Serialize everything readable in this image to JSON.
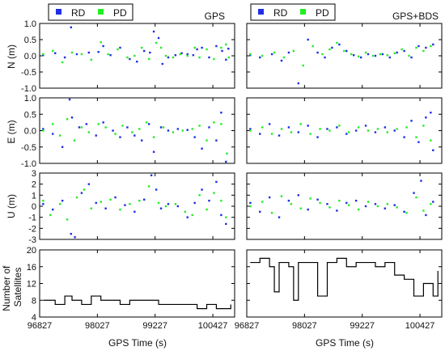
{
  "figure": {
    "xlabel": "GPS Time (s)",
    "xticks": [
      "96827",
      "98027",
      "99227",
      "100427"
    ],
    "columns": [
      "GPS",
      "GPS+BDS"
    ],
    "ylabels": [
      "N (m)",
      "E (m)",
      "U (m)",
      "Number of Satellites"
    ],
    "legend": [
      "RD",
      "PD"
    ]
  },
  "colors": {
    "RD": "#1f2ee6",
    "PD": "#22ee22",
    "line": "#000000",
    "frame": "#000000"
  },
  "chart_data": [
    {
      "type": "scatter",
      "panel": "N",
      "column": "GPS",
      "title": "GPS",
      "ylabel": "N (m)",
      "xlim": [
        96827,
        100880
      ],
      "ylim": [
        -1.0,
        1.0
      ],
      "yticks": [
        "1.0",
        "0.5",
        "0.0",
        "-0.5",
        "-1.0"
      ],
      "legend": "top-left",
      "series": [
        {
          "name": "RD",
          "x": [
            96900,
            97150,
            97350,
            97480,
            97600,
            97850,
            98050,
            98150,
            98300,
            98500,
            98700,
            98850,
            99000,
            99120,
            99200,
            99300,
            99380,
            99500,
            99650,
            99780,
            99900,
            100020,
            100100,
            100200,
            100350,
            100500,
            100620,
            100700,
            100750
          ],
          "y": [
            0.02,
            0.08,
            -0.05,
            0.88,
            0.05,
            0.1,
            0.12,
            0.3,
            0.02,
            0.25,
            -0.1,
            -0.18,
            0.15,
            0.1,
            0.75,
            0.55,
            -0.25,
            -0.05,
            0.02,
            0.08,
            0.05,
            0.02,
            0.2,
            0.25,
            -0.05,
            0.3,
            0.15,
            -0.12,
            0.22
          ]
        },
        {
          "name": "PD",
          "x": [
            96900,
            97100,
            97300,
            97500,
            97700,
            97900,
            98100,
            98250,
            98450,
            98650,
            98800,
            98950,
            99100,
            99250,
            99350,
            99450,
            99600,
            99750,
            99900,
            100050,
            100150,
            100300,
            100450,
            100600,
            100700,
            100760
          ],
          "y": [
            0.05,
            0.15,
            -0.2,
            0.1,
            0.05,
            -0.12,
            0.42,
            0.05,
            0.2,
            -0.05,
            0.0,
            0.25,
            -0.1,
            0.4,
            0.25,
            0.0,
            -0.05,
            0.05,
            0.0,
            0.25,
            -0.05,
            0.2,
            -0.1,
            0.25,
            0.35,
            -0.05
          ]
        }
      ]
    },
    {
      "type": "scatter",
      "panel": "N",
      "column": "GPS+BDS",
      "title": "GPS+BDS",
      "ylabel": "",
      "xlim": [
        96827,
        100880
      ],
      "ylim": [
        -1.0,
        1.0
      ],
      "yticks": [],
      "legend": "top-left",
      "series": [
        {
          "name": "RD",
          "x": [
            96900,
            97100,
            97350,
            97550,
            97700,
            97900,
            98100,
            98300,
            98450,
            98600,
            98750,
            98900,
            99050,
            99200,
            99350,
            99500,
            99650,
            99800,
            99950,
            100100,
            100250,
            100400,
            100550,
            100700
          ],
          "y": [
            0.02,
            -0.05,
            0.05,
            -0.15,
            0.1,
            -0.85,
            0.5,
            0.1,
            -0.05,
            0.25,
            0.35,
            0.15,
            0.02,
            -0.05,
            0.05,
            0.0,
            0.05,
            -0.05,
            0.1,
            0.15,
            -0.05,
            0.3,
            0.25,
            0.35
          ]
        },
        {
          "name": "PD",
          "x": [
            96900,
            97150,
            97400,
            97600,
            97800,
            98000,
            98200,
            98400,
            98550,
            98700,
            98850,
            99000,
            99150,
            99300,
            99450,
            99600,
            99750,
            99900,
            100050,
            100200,
            100350,
            100500,
            100650
          ],
          "y": [
            0.05,
            0.0,
            0.1,
            -0.05,
            0.15,
            -0.3,
            0.3,
            0.05,
            0.2,
            0.4,
            0.15,
            0.05,
            -0.02,
            0.1,
            0.0,
            0.05,
            0.02,
            0.08,
            0.2,
            0.0,
            0.25,
            0.15,
            0.3
          ]
        }
      ]
    },
    {
      "type": "scatter",
      "panel": "E",
      "column": "GPS",
      "title": "",
      "ylabel": "E (m)",
      "xlim": [
        96827,
        100880
      ],
      "ylim": [
        -1.0,
        1.0
      ],
      "yticks": [
        "1.0",
        "0.5",
        "0.0",
        "-0.5",
        "-1.0"
      ],
      "series": [
        {
          "name": "RD",
          "x": [
            96900,
            97100,
            97300,
            97450,
            97500,
            97650,
            97800,
            98000,
            98150,
            98350,
            98500,
            98650,
            98800,
            98950,
            99100,
            99200,
            99350,
            99500,
            99700,
            99900,
            100050,
            100200,
            100350,
            100500,
            100600,
            100700
          ],
          "y": [
            0.05,
            -0.1,
            -0.5,
            0.95,
            0.4,
            0.1,
            0.2,
            -0.15,
            0.25,
            0.0,
            -0.2,
            0.1,
            -0.15,
            -0.3,
            0.2,
            -0.65,
            0.1,
            0.0,
            0.05,
            0.02,
            -0.2,
            -0.55,
            0.1,
            -0.3,
            0.55,
            -0.95
          ]
        },
        {
          "name": "PD",
          "x": [
            96900,
            97100,
            97250,
            97400,
            97550,
            97700,
            97850,
            98050,
            98200,
            98400,
            98550,
            98750,
            98900,
            99050,
            99200,
            99400,
            99600,
            99800,
            100000,
            100150,
            100300,
            100450,
            100600,
            100720
          ],
          "y": [
            0.0,
            0.2,
            -0.15,
            0.35,
            -0.3,
            0.1,
            -0.05,
            0.2,
            0.1,
            -0.1,
            0.15,
            -0.05,
            0.05,
            0.25,
            -0.2,
            0.1,
            -0.05,
            0.0,
            0.05,
            0.15,
            -0.3,
            0.25,
            0.2,
            -0.7
          ]
        }
      ]
    },
    {
      "type": "scatter",
      "panel": "E",
      "column": "GPS+BDS",
      "title": "",
      "ylabel": "",
      "xlim": [
        96827,
        100880
      ],
      "ylim": [
        -1.0,
        1.0
      ],
      "yticks": [],
      "series": [
        {
          "name": "RD",
          "x": [
            96900,
            97100,
            97300,
            97500,
            97700,
            97900,
            98100,
            98300,
            98500,
            98700,
            98900,
            99100,
            99300,
            99500,
            99700,
            99900,
            100100,
            100250,
            100400,
            100550,
            100650,
            100700
          ],
          "y": [
            0.05,
            -0.1,
            0.2,
            -0.15,
            0.1,
            -0.05,
            0.15,
            -0.2,
            0.05,
            0.1,
            -0.1,
            0.0,
            0.15,
            -0.05,
            0.1,
            0.0,
            -0.2,
            0.3,
            -0.35,
            0.4,
            0.55,
            -0.6
          ]
        },
        {
          "name": "PD",
          "x": [
            96900,
            97150,
            97350,
            97550,
            97750,
            97950,
            98150,
            98350,
            98550,
            98750,
            98950,
            99150,
            99350,
            99550,
            99750,
            99950,
            100150,
            100350,
            100500,
            100650
          ],
          "y": [
            0.0,
            0.1,
            -0.1,
            0.05,
            -0.05,
            0.2,
            -0.1,
            0.05,
            0.0,
            0.15,
            -0.05,
            0.1,
            0.0,
            0.05,
            -0.05,
            0.05,
            0.1,
            -0.2,
            0.15,
            -0.3
          ]
        }
      ]
    },
    {
      "type": "scatter",
      "panel": "U",
      "column": "GPS",
      "title": "",
      "ylabel": "U (m)",
      "xlim": [
        96827,
        100880
      ],
      "ylim": [
        -3,
        3
      ],
      "yticks": [
        "3",
        "2",
        "1",
        "0",
        "-1",
        "-2",
        "-3"
      ],
      "series": [
        {
          "name": "RD",
          "x": [
            96900,
            97100,
            97300,
            97480,
            97560,
            97700,
            97850,
            98000,
            98200,
            98400,
            98600,
            98800,
            99000,
            99150,
            99250,
            99350,
            99500,
            99700,
            99900,
            100050,
            100200,
            100350,
            100500,
            100600,
            100700
          ],
          "y": [
            0.2,
            -0.3,
            0.5,
            -2.5,
            -2.8,
            1.2,
            2.0,
            0.3,
            -0.2,
            0.8,
            0.1,
            -0.5,
            0.6,
            2.8,
            1.5,
            -0.2,
            0.2,
            0.0,
            -1.0,
            0.3,
            1.5,
            0.5,
            2.2,
            -0.8,
            -1.6
          ]
        },
        {
          "name": "PD",
          "x": [
            96900,
            97050,
            97250,
            97400,
            97600,
            97750,
            97900,
            98100,
            98300,
            98500,
            98700,
            98900,
            99100,
            99300,
            99450,
            99650,
            99850,
            100000,
            100150,
            100300,
            100450,
            100600,
            100700
          ],
          "y": [
            0.5,
            -0.8,
            0.2,
            -1.2,
            0.8,
            1.5,
            -0.2,
            0.4,
            0.6,
            -0.3,
            0.2,
            0.5,
            1.8,
            0.3,
            0.0,
            0.2,
            -0.5,
            -0.8,
            1.0,
            -0.3,
            1.2,
            0.5,
            -1.0
          ]
        }
      ]
    },
    {
      "type": "scatter",
      "panel": "U",
      "column": "GPS+BDS",
      "title": "",
      "ylabel": "",
      "xlim": [
        96827,
        100880
      ],
      "ylim": [
        -3,
        3
      ],
      "yticks": [],
      "series": [
        {
          "name": "RD",
          "x": [
            96900,
            97100,
            97300,
            97500,
            97700,
            97900,
            98100,
            98300,
            98500,
            98700,
            98900,
            99100,
            99300,
            99500,
            99700,
            99900,
            100100,
            100300,
            100450,
            100550,
            100700
          ],
          "y": [
            0.3,
            -0.5,
            0.8,
            -1.0,
            0.5,
            1.0,
            -0.3,
            0.6,
            0.2,
            -0.4,
            0.3,
            0.5,
            0.0,
            0.2,
            -0.2,
            0.1,
            -0.5,
            1.2,
            2.3,
            -0.8,
            0.4
          ]
        },
        {
          "name": "PD",
          "x": [
            96900,
            97150,
            97350,
            97550,
            97750,
            97950,
            98150,
            98350,
            98550,
            98750,
            98950,
            99150,
            99350,
            99550,
            99750,
            99950,
            100150,
            100350,
            100500,
            100650
          ],
          "y": [
            0.0,
            0.4,
            -0.6,
            0.9,
            0.2,
            -0.2,
            0.7,
            0.3,
            -0.1,
            0.5,
            0.1,
            -0.3,
            0.4,
            0.0,
            0.2,
            -0.1,
            -0.6,
            0.8,
            -0.4,
            0.2
          ]
        }
      ]
    },
    {
      "type": "line",
      "panel": "Satellites",
      "column": "GPS",
      "title": "",
      "ylabel": "Number of Satellites",
      "xlim": [
        96827,
        100880
      ],
      "ylim": [
        4,
        20
      ],
      "yticks": [
        "20",
        "16",
        "12",
        "8",
        "4"
      ],
      "series": [
        {
          "name": "",
          "x": [
            96900,
            97150,
            97350,
            97500,
            97700,
            97900,
            98100,
            98300,
            98500,
            98700,
            98900,
            99100,
            99300,
            99500,
            99700,
            99900,
            100100,
            100300,
            100500,
            100700,
            100800
          ],
          "y": [
            8,
            7,
            9,
            8,
            7,
            9,
            8,
            8,
            7,
            8,
            8,
            8,
            7,
            7,
            7,
            7,
            6,
            7,
            6,
            6,
            7
          ]
        }
      ]
    },
    {
      "type": "line",
      "panel": "Satellites",
      "column": "GPS+BDS",
      "title": "",
      "ylabel": "",
      "xlim": [
        96827,
        100880
      ],
      "ylim": [
        4,
        20
      ],
      "yticks": [],
      "series": [
        {
          "name": "",
          "x": [
            96900,
            97100,
            97300,
            97400,
            97500,
            97700,
            97800,
            97900,
            98100,
            98300,
            98500,
            98700,
            98900,
            99100,
            99300,
            99500,
            99700,
            99900,
            100100,
            100300,
            100500,
            100700,
            100800
          ],
          "y": [
            17,
            18,
            16,
            10,
            17,
            16,
            8,
            17,
            17,
            9,
            17,
            18,
            16,
            17,
            17,
            16,
            17,
            14,
            13,
            9,
            12,
            9,
            15
          ]
        }
      ]
    }
  ]
}
